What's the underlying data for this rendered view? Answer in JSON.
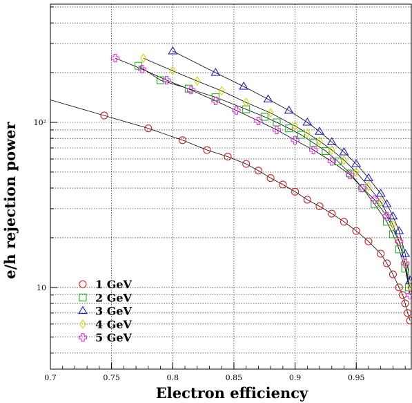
{
  "chart_data": {
    "type": "scatter",
    "xlabel": "Electron efficiency",
    "ylabel": "e/h rejection power",
    "xlim": [
      0.7,
      0.995
    ],
    "ylim": [
      3.2,
      520
    ],
    "yscale": "log",
    "grid": true,
    "legend_position": "bottom-left",
    "x_ticks": [
      {
        "value": 0.7,
        "label": "0.7"
      },
      {
        "value": 0.75,
        "label": "0.75"
      },
      {
        "value": 0.8,
        "label": "0.8"
      },
      {
        "value": 0.85,
        "label": "0.85"
      },
      {
        "value": 0.9,
        "label": "0.9"
      },
      {
        "value": 0.95,
        "label": "0.95"
      }
    ],
    "y_ticks": [
      {
        "value": 10,
        "label": "10"
      },
      {
        "value": 100,
        "label": "10²"
      }
    ],
    "series": [
      {
        "name": "1 GeV",
        "marker": "circle",
        "color": "#d42020",
        "x": [
          0.744,
          0.78,
          0.808,
          0.828,
          0.845,
          0.86,
          0.87,
          0.88,
          0.89,
          0.9,
          0.91,
          0.92,
          0.93,
          0.94,
          0.95,
          0.96,
          0.97,
          0.975,
          0.98,
          0.985,
          0.988,
          0.99,
          0.992,
          0.994
        ],
        "y": [
          110,
          92,
          78,
          68,
          62,
          56,
          51,
          46,
          42,
          38,
          34,
          31,
          28,
          25,
          22,
          19,
          16,
          14,
          12,
          10,
          9,
          8,
          7,
          6.3
        ]
      },
      {
        "name": "2 GeV",
        "marker": "square",
        "color": "#1fb41f",
        "x": [
          0.772,
          0.79,
          0.813,
          0.835,
          0.86,
          0.875,
          0.885,
          0.895,
          0.905,
          0.915,
          0.925,
          0.935,
          0.945,
          0.955,
          0.965,
          0.975,
          0.98,
          0.985,
          0.99,
          0.993
        ],
        "y": [
          220,
          180,
          160,
          142,
          120,
          108,
          100,
          92,
          84,
          75,
          67,
          58,
          49,
          40,
          32,
          25,
          21,
          17,
          13,
          10
        ]
      },
      {
        "name": "3 GeV",
        "marker": "triangle",
        "color": "#2020d0",
        "x": [
          0.8,
          0.835,
          0.858,
          0.878,
          0.895,
          0.91,
          0.92,
          0.93,
          0.94,
          0.95,
          0.96,
          0.97,
          0.975,
          0.98,
          0.985,
          0.99,
          0.994
        ],
        "y": [
          270,
          200,
          165,
          138,
          118,
          100,
          88,
          76,
          66,
          56,
          46,
          37,
          32,
          27,
          22,
          16,
          11
        ]
      },
      {
        "name": "4 GeV",
        "marker": "diamond",
        "color": "#d4d400",
        "x": [
          0.776,
          0.8,
          0.82,
          0.84,
          0.86,
          0.88,
          0.9,
          0.91,
          0.92,
          0.93,
          0.94,
          0.95,
          0.96,
          0.97,
          0.98,
          0.985,
          0.99,
          0.994
        ],
        "y": [
          245,
          205,
          178,
          155,
          132,
          114,
          95,
          86,
          77,
          68,
          59,
          50,
          41,
          33,
          24,
          19,
          14,
          10
        ]
      },
      {
        "name": "5 GeV",
        "marker": "cross",
        "color": "#e030e0",
        "x": [
          0.753,
          0.775,
          0.795,
          0.815,
          0.835,
          0.852,
          0.87,
          0.885,
          0.9,
          0.915,
          0.93,
          0.945,
          0.955,
          0.965,
          0.975,
          0.985,
          0.99,
          0.994
        ],
        "y": [
          245,
          210,
          180,
          157,
          135,
          118,
          102,
          90,
          78,
          68,
          58,
          48,
          40,
          34,
          27,
          19,
          14,
          9
        ]
      }
    ]
  }
}
